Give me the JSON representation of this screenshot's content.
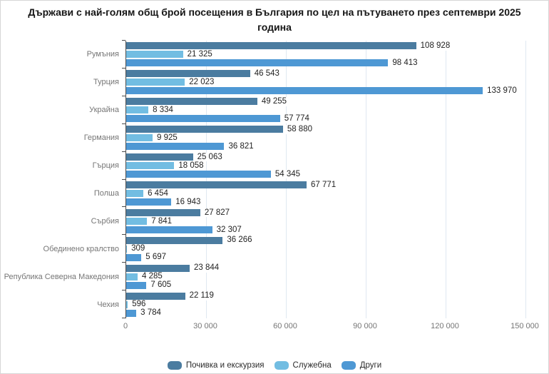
{
  "chart_data": {
    "type": "bar",
    "orientation": "horizontal",
    "title": "Държави с най-голям общ брой посещения в България по цел на пътуването през септември 2025 година",
    "categories": [
      "Румъния",
      "Турция",
      "Украйна",
      "Германия",
      "Гърция",
      "Полша",
      "Сърбия",
      "Обединено кралство",
      "Република Северна Македония",
      "Чехия"
    ],
    "series": [
      {
        "name": "Почивка и екскурзия",
        "color": "#4b7ca0",
        "values": [
          108928,
          46543,
          49255,
          58880,
          25063,
          67771,
          27827,
          36266,
          23844,
          22119
        ]
      },
      {
        "name": "Служебна",
        "color": "#72bde2",
        "values": [
          21325,
          22023,
          8334,
          9925,
          18058,
          6454,
          7841,
          309,
          4285,
          596
        ]
      },
      {
        "name": "Други",
        "color": "#4e98d4",
        "values": [
          98413,
          133970,
          57774,
          36821,
          54345,
          16943,
          32307,
          5697,
          7605,
          3784
        ]
      }
    ],
    "xlim": [
      0,
      150000
    ],
    "x_ticks": [
      0,
      30000,
      60000,
      90000,
      120000,
      150000
    ],
    "x_tick_labels": [
      "0",
      "30 000",
      "60 000",
      "90 000",
      "120 000",
      "150 000"
    ],
    "value_labels_shown": true,
    "grid": "vertical",
    "legend_position": "bottom",
    "colors": {
      "background": "#ffffff",
      "frame_border": "#d6d6d6",
      "axis_line": "#4c4c4c",
      "gridline": "#dfe8f1",
      "category_label": "#767676",
      "tick_label": "#767676",
      "value_label": "#1f1f1f",
      "title": "#161616"
    }
  }
}
